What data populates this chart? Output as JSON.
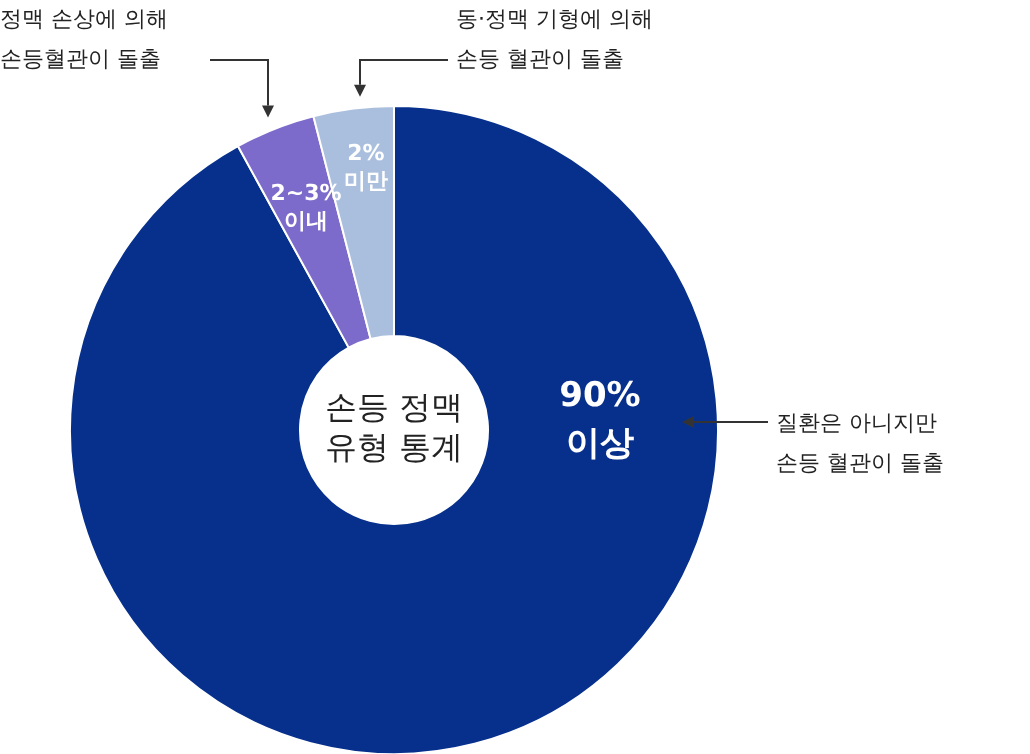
{
  "chart_data": {
    "type": "donut",
    "title": "손등 정맥\n유형 통계",
    "categories": [
      "90%\n이상",
      "2~3%\n이내",
      "2%\n미만"
    ],
    "values": [
      92,
      4,
      4
    ],
    "colors": [
      "#06308c",
      "#7d6bcb",
      "#aabfde"
    ],
    "annotations": [
      "질환은 아니지만\n손등 혈관이 돌출",
      "정맥 손상에 의해\n손등혈관이 돌출",
      "동·정맥 기형에 의해\n손등 혈관이 돌출"
    ]
  }
}
